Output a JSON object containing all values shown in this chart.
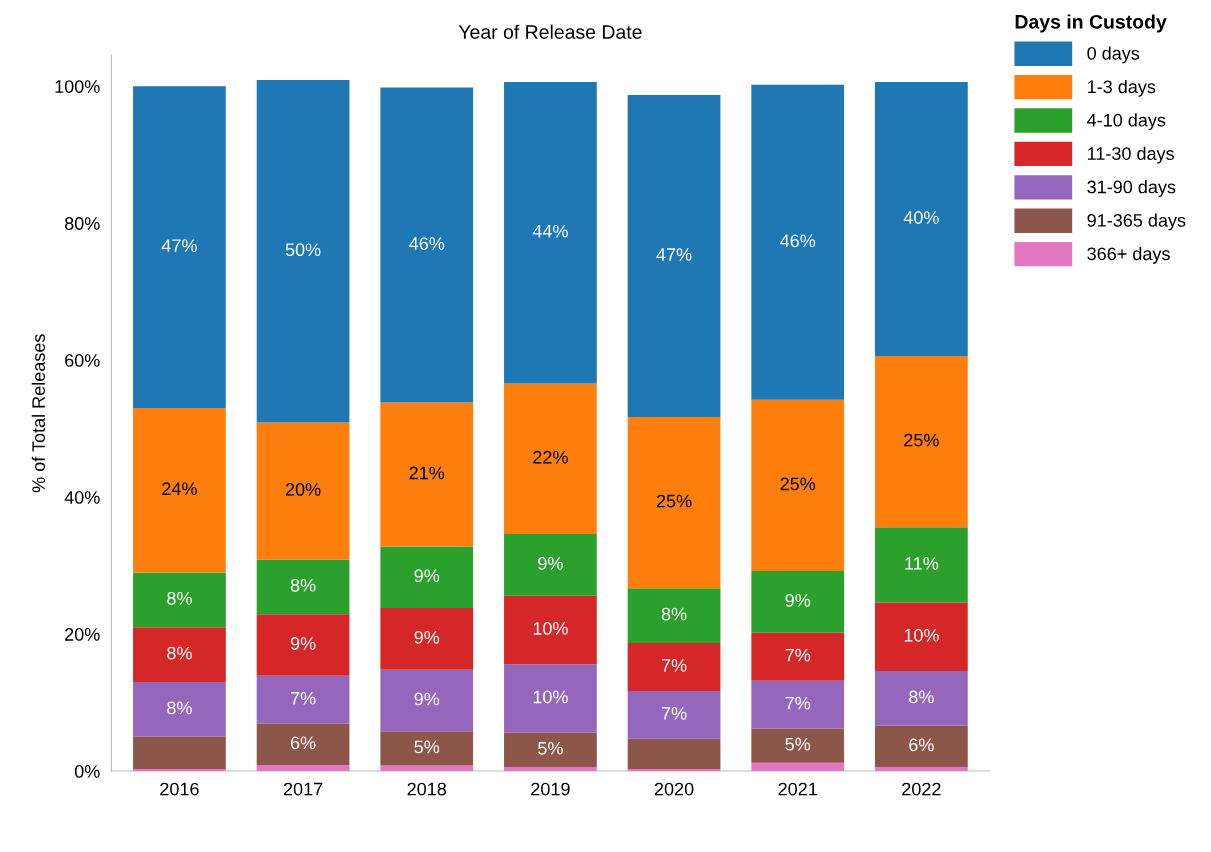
{
  "chart_data": {
    "type": "bar",
    "stacked": true,
    "title": "Year of Release Date",
    "ylabel": "% of Total Releases",
    "legend_title": "Days in Custody",
    "legend": "top right",
    "categories": [
      "2016",
      "2017",
      "2018",
      "2019",
      "2020",
      "2021",
      "2022"
    ],
    "ylim": [
      0,
      104.5
    ],
    "yticks": [
      {
        "value": 0,
        "label": "0%"
      },
      {
        "value": 20,
        "label": "20%"
      },
      {
        "value": 40,
        "label": "40%"
      },
      {
        "value": 60,
        "label": "60%"
      },
      {
        "value": 80,
        "label": "80%"
      },
      {
        "value": 100,
        "label": "100%"
      }
    ],
    "grid": false,
    "series": [
      {
        "name": "366+ days",
        "color": "#e377c2",
        "values": [
          0.3,
          0.9,
          0.8,
          0.6,
          0.3,
          1.2,
          0.6
        ],
        "value_labels": [
          null,
          null,
          null,
          null,
          null,
          null,
          null
        ]
      },
      {
        "name": "91-365 days",
        "color": "#8c564b",
        "values": [
          4.7,
          6,
          5,
          5,
          4.4,
          5,
          6
        ],
        "value_labels": [
          null,
          "6%",
          "5%",
          "5%",
          null,
          "5%",
          "6%"
        ]
      },
      {
        "name": "31-90 days",
        "color": "#9467bd",
        "values": [
          8,
          7,
          9,
          10,
          7,
          7,
          8
        ],
        "value_labels": [
          "8%",
          "7%",
          "9%",
          "10%",
          "7%",
          "7%",
          "8%"
        ]
      },
      {
        "name": "11-30 days",
        "color": "#d62728",
        "values": [
          8,
          9,
          9,
          10,
          7,
          7,
          10
        ],
        "value_labels": [
          "8%",
          "9%",
          "9%",
          "10%",
          "7%",
          "7%",
          "10%"
        ]
      },
      {
        "name": "4-10 days",
        "color": "#2ca02c",
        "values": [
          8,
          8,
          9,
          9,
          8,
          9,
          11
        ],
        "value_labels": [
          "8%",
          "8%",
          "9%",
          "9%",
          "8%",
          "9%",
          "11%"
        ]
      },
      {
        "name": "1-3 days",
        "color": "#ff7f0e",
        "values": [
          24,
          20,
          21,
          22,
          25,
          25,
          25
        ],
        "value_labels": [
          "24%",
          "20%",
          "21%",
          "22%",
          "25%",
          "25%",
          "25%"
        ]
      },
      {
        "name": "0 days",
        "color": "#1f77b4",
        "values": [
          47,
          50,
          46,
          44,
          47,
          46,
          40
        ],
        "value_labels": [
          "47%",
          "50%",
          "46%",
          "44%",
          "47%",
          "46%",
          "40%"
        ]
      }
    ]
  }
}
